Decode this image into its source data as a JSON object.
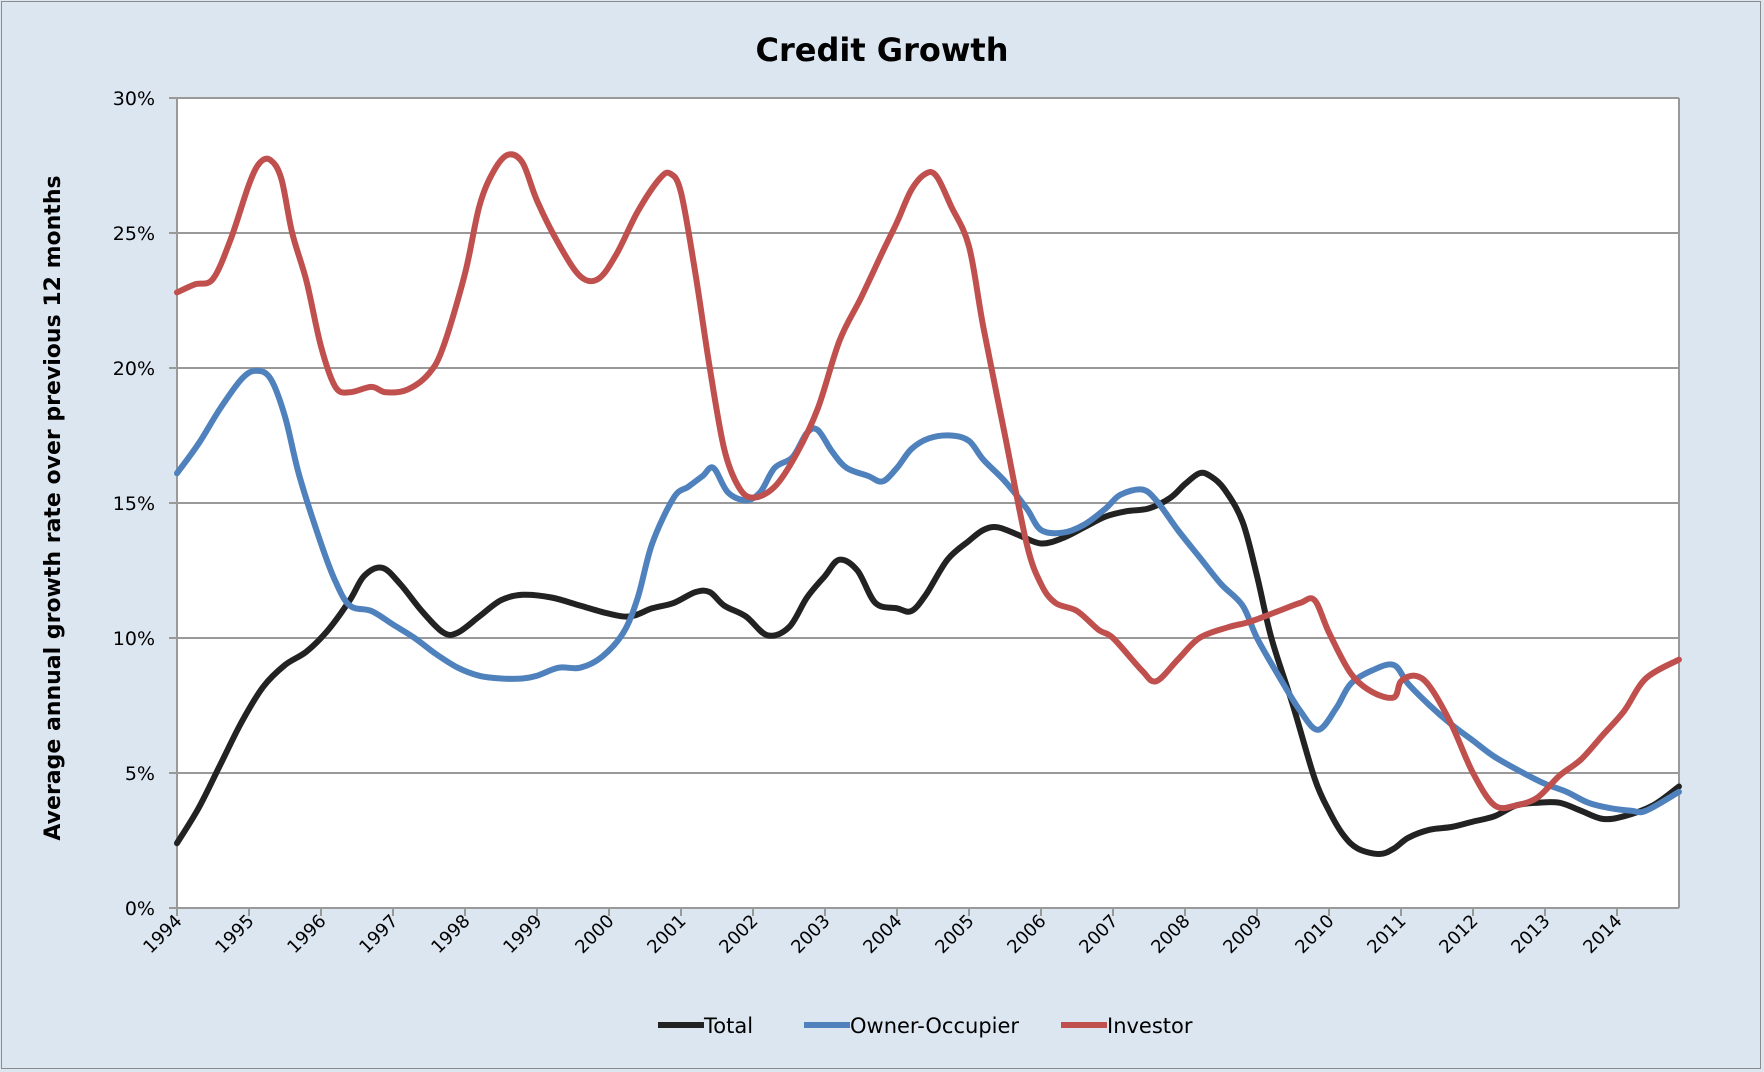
{
  "chart_data": {
    "type": "line",
    "title": "Credit Growth",
    "xlabel": "",
    "ylabel": "Average annual growth rate over previous 12 months",
    "xlim": [
      1994,
      2014.86
    ],
    "ylim": [
      0,
      30
    ],
    "y_ticks": [
      0,
      5,
      10,
      15,
      20,
      25,
      30
    ],
    "y_tick_labels": [
      "0%",
      "5%",
      "10%",
      "15%",
      "20%",
      "25%",
      "30%"
    ],
    "x_tick_labels": [
      "1994",
      "1995",
      "1996",
      "1997",
      "1998",
      "1999",
      "2000",
      "2001",
      "2002",
      "2003",
      "2004",
      "2005",
      "2006",
      "2007",
      "2008",
      "2009",
      "2010",
      "2011",
      "2012",
      "2013",
      "2014"
    ],
    "grid": true,
    "legend_position": "bottom",
    "series": [
      {
        "name": "Total",
        "color": "#222222",
        "points": [
          [
            1994.0,
            2.4
          ],
          [
            1994.3,
            3.7
          ],
          [
            1994.6,
            5.3
          ],
          [
            1994.9,
            6.9
          ],
          [
            1995.2,
            8.2
          ],
          [
            1995.5,
            9.0
          ],
          [
            1995.8,
            9.5
          ],
          [
            1996.1,
            10.3
          ],
          [
            1996.4,
            11.4
          ],
          [
            1996.6,
            12.3
          ],
          [
            1996.85,
            12.6
          ],
          [
            1997.1,
            12.0
          ],
          [
            1997.4,
            11.0
          ],
          [
            1997.7,
            10.2
          ],
          [
            1997.9,
            10.2
          ],
          [
            1998.2,
            10.8
          ],
          [
            1998.5,
            11.4
          ],
          [
            1998.8,
            11.6
          ],
          [
            1999.2,
            11.5
          ],
          [
            1999.6,
            11.2
          ],
          [
            2000.0,
            10.9
          ],
          [
            2000.3,
            10.8
          ],
          [
            2000.6,
            11.1
          ],
          [
            2000.9,
            11.3
          ],
          [
            2001.2,
            11.7
          ],
          [
            2001.4,
            11.7
          ],
          [
            2001.6,
            11.2
          ],
          [
            2001.9,
            10.8
          ],
          [
            2002.2,
            10.1
          ],
          [
            2002.5,
            10.4
          ],
          [
            2002.75,
            11.5
          ],
          [
            2003.0,
            12.3
          ],
          [
            2003.2,
            12.9
          ],
          [
            2003.45,
            12.5
          ],
          [
            2003.7,
            11.3
          ],
          [
            2004.0,
            11.1
          ],
          [
            2004.2,
            11.0
          ],
          [
            2004.4,
            11.6
          ],
          [
            2004.7,
            12.9
          ],
          [
            2005.0,
            13.6
          ],
          [
            2005.2,
            14.0
          ],
          [
            2005.4,
            14.1
          ],
          [
            2005.7,
            13.8
          ],
          [
            2006.0,
            13.5
          ],
          [
            2006.3,
            13.7
          ],
          [
            2006.6,
            14.1
          ],
          [
            2006.9,
            14.5
          ],
          [
            2007.2,
            14.7
          ],
          [
            2007.5,
            14.8
          ],
          [
            2007.8,
            15.2
          ],
          [
            2008.0,
            15.7
          ],
          [
            2008.2,
            16.1
          ],
          [
            2008.35,
            16.0
          ],
          [
            2008.55,
            15.5
          ],
          [
            2008.8,
            14.3
          ],
          [
            2009.0,
            12.3
          ],
          [
            2009.2,
            10.0
          ],
          [
            2009.5,
            7.5
          ],
          [
            2009.8,
            4.8
          ],
          [
            2010.0,
            3.6
          ],
          [
            2010.2,
            2.7
          ],
          [
            2010.4,
            2.2
          ],
          [
            2010.7,
            2.0
          ],
          [
            2010.9,
            2.2
          ],
          [
            2011.1,
            2.6
          ],
          [
            2011.4,
            2.9
          ],
          [
            2011.7,
            3.0
          ],
          [
            2012.0,
            3.2
          ],
          [
            2012.3,
            3.4
          ],
          [
            2012.6,
            3.8
          ],
          [
            2012.9,
            3.9
          ],
          [
            2013.2,
            3.9
          ],
          [
            2013.5,
            3.6
          ],
          [
            2013.8,
            3.3
          ],
          [
            2014.1,
            3.4
          ],
          [
            2014.5,
            3.8
          ],
          [
            2014.86,
            4.5
          ]
        ]
      },
      {
        "name": "Owner-Occupier",
        "color": "#4f81bd",
        "points": [
          [
            1994.0,
            16.1
          ],
          [
            1994.3,
            17.2
          ],
          [
            1994.6,
            18.5
          ],
          [
            1994.9,
            19.6
          ],
          [
            1995.1,
            19.9
          ],
          [
            1995.3,
            19.6
          ],
          [
            1995.5,
            18.2
          ],
          [
            1995.7,
            16.0
          ],
          [
            1996.0,
            13.5
          ],
          [
            1996.2,
            12.1
          ],
          [
            1996.4,
            11.2
          ],
          [
            1996.7,
            11.0
          ],
          [
            1997.0,
            10.5
          ],
          [
            1997.3,
            10.0
          ],
          [
            1997.6,
            9.4
          ],
          [
            1997.9,
            8.9
          ],
          [
            1998.2,
            8.6
          ],
          [
            1998.5,
            8.5
          ],
          [
            1998.8,
            8.5
          ],
          [
            1999.0,
            8.6
          ],
          [
            1999.3,
            8.9
          ],
          [
            1999.6,
            8.9
          ],
          [
            1999.9,
            9.3
          ],
          [
            2000.2,
            10.2
          ],
          [
            2000.4,
            11.5
          ],
          [
            2000.6,
            13.5
          ],
          [
            2000.9,
            15.2
          ],
          [
            2001.1,
            15.6
          ],
          [
            2001.3,
            16.0
          ],
          [
            2001.45,
            16.3
          ],
          [
            2001.65,
            15.4
          ],
          [
            2001.9,
            15.1
          ],
          [
            2002.1,
            15.4
          ],
          [
            2002.3,
            16.3
          ],
          [
            2002.55,
            16.7
          ],
          [
            2002.75,
            17.6
          ],
          [
            2002.9,
            17.7
          ],
          [
            2003.1,
            16.9
          ],
          [
            2003.3,
            16.3
          ],
          [
            2003.6,
            16.0
          ],
          [
            2003.8,
            15.8
          ],
          [
            2004.0,
            16.3
          ],
          [
            2004.2,
            17.0
          ],
          [
            2004.45,
            17.4
          ],
          [
            2004.75,
            17.5
          ],
          [
            2005.0,
            17.3
          ],
          [
            2005.2,
            16.6
          ],
          [
            2005.5,
            15.8
          ],
          [
            2005.8,
            14.8
          ],
          [
            2006.0,
            14.0
          ],
          [
            2006.3,
            13.9
          ],
          [
            2006.6,
            14.2
          ],
          [
            2006.9,
            14.8
          ],
          [
            2007.1,
            15.3
          ],
          [
            2007.4,
            15.5
          ],
          [
            2007.6,
            15.1
          ],
          [
            2007.9,
            14.0
          ],
          [
            2008.2,
            13.0
          ],
          [
            2008.5,
            12.0
          ],
          [
            2008.8,
            11.2
          ],
          [
            2009.0,
            10.0
          ],
          [
            2009.3,
            8.6
          ],
          [
            2009.6,
            7.3
          ],
          [
            2009.85,
            6.6
          ],
          [
            2010.1,
            7.4
          ],
          [
            2010.3,
            8.3
          ],
          [
            2010.6,
            8.8
          ],
          [
            2010.9,
            9.0
          ],
          [
            2011.1,
            8.3
          ],
          [
            2011.4,
            7.5
          ],
          [
            2011.7,
            6.8
          ],
          [
            2012.0,
            6.2
          ],
          [
            2012.3,
            5.6
          ],
          [
            2012.7,
            5.0
          ],
          [
            2013.0,
            4.6
          ],
          [
            2013.3,
            4.3
          ],
          [
            2013.6,
            3.9
          ],
          [
            2013.9,
            3.7
          ],
          [
            2014.2,
            3.6
          ],
          [
            2014.4,
            3.6
          ],
          [
            2014.86,
            4.3
          ]
        ]
      },
      {
        "name": "Investor",
        "color": "#c0504d",
        "points": [
          [
            1994.0,
            22.8
          ],
          [
            1994.25,
            23.1
          ],
          [
            1994.5,
            23.3
          ],
          [
            1994.75,
            24.8
          ],
          [
            1995.0,
            26.8
          ],
          [
            1995.15,
            27.6
          ],
          [
            1995.3,
            27.7
          ],
          [
            1995.45,
            27.0
          ],
          [
            1995.6,
            25.0
          ],
          [
            1995.8,
            23.2
          ],
          [
            1996.0,
            20.8
          ],
          [
            1996.2,
            19.3
          ],
          [
            1996.4,
            19.1
          ],
          [
            1996.7,
            19.3
          ],
          [
            1996.9,
            19.1
          ],
          [
            1997.2,
            19.2
          ],
          [
            1997.5,
            19.8
          ],
          [
            1997.7,
            20.8
          ],
          [
            1998.0,
            23.5
          ],
          [
            1998.2,
            26.0
          ],
          [
            1998.4,
            27.3
          ],
          [
            1998.6,
            27.9
          ],
          [
            1998.8,
            27.6
          ],
          [
            1999.0,
            26.2
          ],
          [
            1999.3,
            24.6
          ],
          [
            1999.6,
            23.4
          ],
          [
            1999.85,
            23.3
          ],
          [
            2000.1,
            24.2
          ],
          [
            2000.4,
            25.8
          ],
          [
            2000.7,
            27.0
          ],
          [
            2000.85,
            27.2
          ],
          [
            2001.0,
            26.5
          ],
          [
            2001.2,
            23.5
          ],
          [
            2001.4,
            20.0
          ],
          [
            2001.6,
            17.0
          ],
          [
            2001.8,
            15.6
          ],
          [
            2002.0,
            15.2
          ],
          [
            2002.3,
            15.6
          ],
          [
            2002.6,
            16.8
          ],
          [
            2002.9,
            18.5
          ],
          [
            2003.2,
            21.0
          ],
          [
            2003.5,
            22.6
          ],
          [
            2003.8,
            24.3
          ],
          [
            2004.0,
            25.4
          ],
          [
            2004.2,
            26.6
          ],
          [
            2004.4,
            27.2
          ],
          [
            2004.55,
            27.1
          ],
          [
            2004.75,
            26.0
          ],
          [
            2005.0,
            24.5
          ],
          [
            2005.2,
            21.5
          ],
          [
            2005.5,
            17.5
          ],
          [
            2005.8,
            13.5
          ],
          [
            2006.0,
            12.0
          ],
          [
            2006.2,
            11.3
          ],
          [
            2006.5,
            11.0
          ],
          [
            2006.8,
            10.3
          ],
          [
            2007.0,
            10.0
          ],
          [
            2007.4,
            8.8
          ],
          [
            2007.6,
            8.4
          ],
          [
            2007.9,
            9.2
          ],
          [
            2008.2,
            10.0
          ],
          [
            2008.6,
            10.4
          ],
          [
            2008.9,
            10.6
          ],
          [
            2009.3,
            11.0
          ],
          [
            2009.6,
            11.3
          ],
          [
            2009.8,
            11.4
          ],
          [
            2010.0,
            10.2
          ],
          [
            2010.3,
            8.7
          ],
          [
            2010.6,
            8.0
          ],
          [
            2010.9,
            7.8
          ],
          [
            2011.0,
            8.4
          ],
          [
            2011.2,
            8.6
          ],
          [
            2011.4,
            8.2
          ],
          [
            2011.7,
            6.8
          ],
          [
            2012.0,
            5.0
          ],
          [
            2012.3,
            3.8
          ],
          [
            2012.6,
            3.8
          ],
          [
            2012.9,
            4.1
          ],
          [
            2013.2,
            4.9
          ],
          [
            2013.5,
            5.5
          ],
          [
            2013.8,
            6.4
          ],
          [
            2014.1,
            7.3
          ],
          [
            2014.4,
            8.5
          ],
          [
            2014.86,
            9.2
          ]
        ]
      }
    ]
  }
}
